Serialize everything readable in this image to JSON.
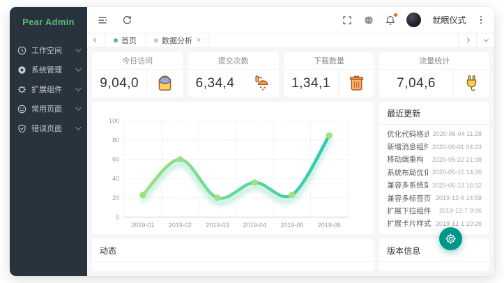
{
  "window": {
    "brand": "Pear Admin"
  },
  "sidebar": {
    "items": [
      {
        "label": "工作空间",
        "icon": "workspace-clock-icon"
      },
      {
        "label": "系统管理",
        "icon": "system-settings-icon"
      },
      {
        "label": "扩展组件",
        "icon": "components-gear-icon"
      },
      {
        "label": "常用页面",
        "icon": "pages-smile-icon"
      },
      {
        "label": "错误页面",
        "icon": "error-shield-icon"
      }
    ]
  },
  "topbar": {
    "username": "就眠仪式"
  },
  "tabbar": {
    "tabs": [
      {
        "label": "首页",
        "active": true
      },
      {
        "label": "数据分析",
        "active": false,
        "close": "×"
      }
    ]
  },
  "stats": {
    "cards": [
      {
        "title": "今日访问",
        "value": "9,04,0",
        "icon": "paint-bucket-icon"
      },
      {
        "title": "提交次数",
        "value": "6,34,4",
        "icon": "shower-icon"
      },
      {
        "title": "下载数量",
        "value": "1,34,1",
        "icon": "trash-icon"
      },
      {
        "title": "流量统计",
        "value": "7,04,6",
        "icon": "plug-icon"
      }
    ]
  },
  "updates": {
    "title": "最近更新",
    "items": [
      {
        "label": "优化代码格式",
        "time": "2020-06-04 11:28"
      },
      {
        "label": "新增消息组件",
        "time": "2020-06-01 04:23"
      },
      {
        "label": "移动端重构",
        "time": "2020-05-22 21:38"
      },
      {
        "label": "系统布局优化",
        "time": "2020-05-15 14:26"
      },
      {
        "label": "兼容多系统菜单模式",
        "time": "2020-05-13 16:32"
      },
      {
        "label": "兼容多标签页切换",
        "time": "2019-12-9 14:58"
      },
      {
        "label": "扩展下拉组件",
        "time": "2019-12-7 9:06"
      },
      {
        "label": "扩展卡片样式",
        "time": "2019-12-1 10:26"
      }
    ]
  },
  "panels": {
    "activity_title": "动态",
    "version_title": "版本信息"
  },
  "chart_data": {
    "type": "line",
    "categories": [
      "2019-01",
      "2019-02",
      "2019-03",
      "2019-04",
      "2019-05",
      "2019-06"
    ],
    "values": [
      23,
      60,
      20,
      36,
      23,
      85
    ],
    "title": "",
    "xlabel": "",
    "ylabel": "",
    "ylim": [
      0,
      100
    ],
    "ytick_step": 20,
    "grid": true,
    "smooth": true,
    "legend": "none",
    "line_gradient": [
      "#9FE080",
      "#5FD89B",
      "#33C7B2"
    ],
    "point_color": "#9FE080",
    "glow_color": "#8FE0C8"
  },
  "colors": {
    "accent_green": "#5FB878",
    "sidebar_bg": "#28333E",
    "fab_teal": "#009688",
    "badge_red": "#FF5722",
    "content_bg": "#f6f6f6"
  }
}
